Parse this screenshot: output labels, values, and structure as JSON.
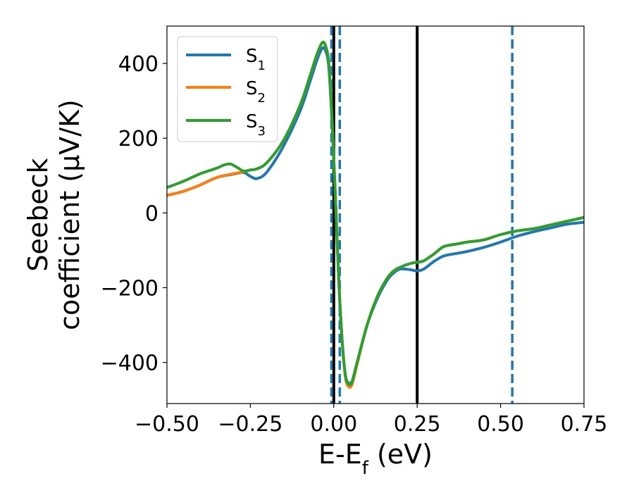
{
  "chart_data": {
    "type": "line",
    "title": "",
    "xlabel": {
      "base": "E-E",
      "sub": "f",
      "rest": " (eV)"
    },
    "ylabel": {
      "line1": "Seebeck",
      "line2": "coefficient  (μV/K)"
    },
    "xlim": [
      -0.5,
      0.75
    ],
    "ylim": [
      -510,
      500
    ],
    "xticks": [
      -0.5,
      -0.25,
      0.0,
      0.25,
      0.5,
      0.75
    ],
    "xtick_labels": [
      "−0.50",
      "−0.25",
      "0.00",
      "0.25",
      "0.50",
      "0.75"
    ],
    "yticks": [
      -400,
      -200,
      0,
      200,
      400
    ],
    "ytick_labels": [
      "−400",
      "−200",
      "0",
      "200",
      "400"
    ],
    "legend": {
      "position": "top-left"
    },
    "series": [
      {
        "name": "S",
        "sub": "1",
        "color": "#1f77b4",
        "points": [
          [
            -0.5,
            47
          ],
          [
            -0.45,
            58
          ],
          [
            -0.4,
            75
          ],
          [
            -0.35,
            95
          ],
          [
            -0.3,
            104
          ],
          [
            -0.27,
            108
          ],
          [
            -0.25,
            98
          ],
          [
            -0.23,
            92
          ],
          [
            -0.2,
            110
          ],
          [
            -0.15,
            180
          ],
          [
            -0.1,
            275
          ],
          [
            -0.07,
            355
          ],
          [
            -0.05,
            410
          ],
          [
            -0.035,
            440
          ],
          [
            -0.025,
            435
          ],
          [
            -0.015,
            390
          ],
          [
            -0.005,
            240
          ],
          [
            0.005,
            40
          ],
          [
            0.015,
            -180
          ],
          [
            0.025,
            -340
          ],
          [
            0.035,
            -435
          ],
          [
            0.045,
            -455
          ],
          [
            0.055,
            -450
          ],
          [
            0.07,
            -400
          ],
          [
            0.1,
            -300
          ],
          [
            0.13,
            -230
          ],
          [
            0.16,
            -180
          ],
          [
            0.18,
            -160
          ],
          [
            0.2,
            -150
          ],
          [
            0.23,
            -152
          ],
          [
            0.25,
            -155
          ],
          [
            0.27,
            -150
          ],
          [
            0.3,
            -130
          ],
          [
            0.33,
            -115
          ],
          [
            0.37,
            -108
          ],
          [
            0.4,
            -103
          ],
          [
            0.45,
            -92
          ],
          [
            0.5,
            -78
          ],
          [
            0.55,
            -62
          ],
          [
            0.6,
            -50
          ],
          [
            0.65,
            -40
          ],
          [
            0.7,
            -30
          ],
          [
            0.75,
            -25
          ]
        ]
      },
      {
        "name": "S",
        "sub": "2",
        "color": "#ff7f0e",
        "points": [
          [
            -0.5,
            47
          ],
          [
            -0.45,
            58
          ],
          [
            -0.4,
            75
          ],
          [
            -0.35,
            95
          ],
          [
            -0.3,
            105
          ],
          [
            -0.27,
            110
          ],
          [
            -0.25,
            115
          ],
          [
            -0.23,
            118
          ],
          [
            -0.2,
            135
          ],
          [
            -0.15,
            195
          ],
          [
            -0.1,
            290
          ],
          [
            -0.07,
            370
          ],
          [
            -0.05,
            425
          ],
          [
            -0.035,
            455
          ],
          [
            -0.025,
            448
          ],
          [
            -0.015,
            400
          ],
          [
            -0.005,
            250
          ],
          [
            0.005,
            40
          ],
          [
            0.015,
            -180
          ],
          [
            0.025,
            -340
          ],
          [
            0.035,
            -440
          ],
          [
            0.045,
            -465
          ],
          [
            0.055,
            -458
          ],
          [
            0.07,
            -405
          ],
          [
            0.1,
            -300
          ],
          [
            0.13,
            -225
          ],
          [
            0.16,
            -175
          ],
          [
            0.18,
            -155
          ],
          [
            0.2,
            -145
          ],
          [
            0.23,
            -135
          ],
          [
            0.25,
            -132
          ],
          [
            0.27,
            -128
          ],
          [
            0.3,
            -110
          ],
          [
            0.33,
            -90
          ],
          [
            0.37,
            -83
          ],
          [
            0.4,
            -78
          ],
          [
            0.45,
            -72
          ],
          [
            0.5,
            -58
          ],
          [
            0.55,
            -48
          ],
          [
            0.6,
            -42
          ],
          [
            0.65,
            -32
          ],
          [
            0.7,
            -22
          ],
          [
            0.75,
            -12
          ]
        ]
      },
      {
        "name": "S",
        "sub": "3",
        "color": "#2ca02c",
        "points": [
          [
            -0.5,
            68
          ],
          [
            -0.45,
            85
          ],
          [
            -0.4,
            105
          ],
          [
            -0.35,
            120
          ],
          [
            -0.33,
            128
          ],
          [
            -0.31,
            131
          ],
          [
            -0.29,
            122
          ],
          [
            -0.27,
            112
          ],
          [
            -0.25,
            115
          ],
          [
            -0.23,
            118
          ],
          [
            -0.2,
            135
          ],
          [
            -0.15,
            195
          ],
          [
            -0.1,
            290
          ],
          [
            -0.07,
            370
          ],
          [
            -0.05,
            425
          ],
          [
            -0.035,
            455
          ],
          [
            -0.025,
            448
          ],
          [
            -0.015,
            400
          ],
          [
            -0.005,
            250
          ],
          [
            0.005,
            40
          ],
          [
            0.015,
            -180
          ],
          [
            0.025,
            -340
          ],
          [
            0.035,
            -435
          ],
          [
            0.045,
            -458
          ],
          [
            0.055,
            -452
          ],
          [
            0.07,
            -400
          ],
          [
            0.1,
            -300
          ],
          [
            0.13,
            -225
          ],
          [
            0.16,
            -175
          ],
          [
            0.18,
            -155
          ],
          [
            0.2,
            -145
          ],
          [
            0.23,
            -135
          ],
          [
            0.25,
            -132
          ],
          [
            0.27,
            -128
          ],
          [
            0.3,
            -110
          ],
          [
            0.33,
            -90
          ],
          [
            0.37,
            -83
          ],
          [
            0.4,
            -78
          ],
          [
            0.45,
            -72
          ],
          [
            0.5,
            -58
          ],
          [
            0.55,
            -48
          ],
          [
            0.6,
            -42
          ],
          [
            0.65,
            -32
          ],
          [
            0.7,
            -22
          ],
          [
            0.75,
            -12
          ]
        ]
      }
    ],
    "vlines": [
      {
        "x": 0.0,
        "style": "solid",
        "color": "#000000"
      },
      {
        "x": 0.25,
        "style": "solid",
        "color": "#000000"
      },
      {
        "x": -0.007,
        "style": "dashed",
        "color": "#1f77b4"
      },
      {
        "x": 0.018,
        "style": "dashed",
        "color": "#1f77b4"
      },
      {
        "x": 0.535,
        "style": "dashed",
        "color": "#1f77b4"
      }
    ]
  }
}
